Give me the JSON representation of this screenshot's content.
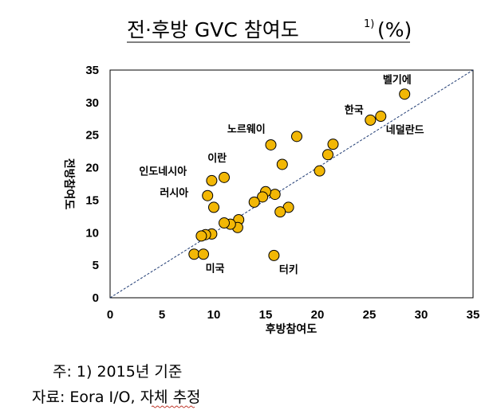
{
  "colors": {
    "marker_fill": "#f2b705",
    "marker_stroke": "#000000",
    "reference_line": "#1f3b73"
  },
  "chart_data": {
    "type": "scatter",
    "title": "전·후방 GVC 참여도",
    "title_superscript": "1)",
    "title_unit": "(%)",
    "xlabel": "후방참여도",
    "ylabel": "전방참여도",
    "xlim": [
      0,
      35
    ],
    "ylim": [
      0,
      35
    ],
    "xticks": [
      0,
      5,
      10,
      15,
      20,
      25,
      30,
      35
    ],
    "yticks": [
      0,
      5,
      10,
      15,
      20,
      25,
      30,
      35
    ],
    "grid": false,
    "reference_line": {
      "style": "dashed",
      "from": [
        0,
        0
      ],
      "to": [
        35,
        35
      ]
    },
    "points": [
      {
        "x": 28.4,
        "y": 31.3
      },
      {
        "x": 26.1,
        "y": 27.9
      },
      {
        "x": 25.1,
        "y": 27.3
      },
      {
        "x": 21.5,
        "y": 23.6
      },
      {
        "x": 21.0,
        "y": 22.0
      },
      {
        "x": 20.2,
        "y": 19.5
      },
      {
        "x": 18.0,
        "y": 24.8
      },
      {
        "x": 15.5,
        "y": 23.5
      },
      {
        "x": 16.6,
        "y": 20.5
      },
      {
        "x": 17.2,
        "y": 13.9
      },
      {
        "x": 16.4,
        "y": 13.2
      },
      {
        "x": 15.9,
        "y": 15.9
      },
      {
        "x": 15.0,
        "y": 16.3
      },
      {
        "x": 14.7,
        "y": 15.5
      },
      {
        "x": 13.9,
        "y": 14.7
      },
      {
        "x": 12.4,
        "y": 12.0
      },
      {
        "x": 12.3,
        "y": 10.8
      },
      {
        "x": 11.6,
        "y": 11.3
      },
      {
        "x": 11.0,
        "y": 11.5
      },
      {
        "x": 11.0,
        "y": 18.5
      },
      {
        "x": 9.8,
        "y": 18.0
      },
      {
        "x": 9.4,
        "y": 15.7
      },
      {
        "x": 10.0,
        "y": 13.9
      },
      {
        "x": 9.8,
        "y": 9.8
      },
      {
        "x": 9.2,
        "y": 9.7
      },
      {
        "x": 8.8,
        "y": 9.5
      },
      {
        "x": 8.1,
        "y": 6.7
      },
      {
        "x": 9.0,
        "y": 6.7
      },
      {
        "x": 15.8,
        "y": 6.5
      }
    ],
    "annotations": [
      {
        "text": "벨기에",
        "x": 26.3,
        "y": 33.0
      },
      {
        "text": "한국",
        "x": 22.6,
        "y": 28.3
      },
      {
        "text": "네덜란드",
        "x": 26.6,
        "y": 25.3
      },
      {
        "text": "노르웨이",
        "x": 11.3,
        "y": 25.4
      },
      {
        "text": "이란",
        "x": 9.4,
        "y": 20.9
      },
      {
        "text": "인도네시아",
        "x": 2.8,
        "y": 18.9
      },
      {
        "text": "러시아",
        "x": 4.8,
        "y": 15.6
      },
      {
        "text": "미국",
        "x": 9.2,
        "y": 4.0
      },
      {
        "text": "터키",
        "x": 16.3,
        "y": 3.8
      }
    ]
  },
  "notes": {
    "note1": "주: 1) 2015년 기준",
    "note2": "자료: Eora I/O, 자체 추정"
  }
}
